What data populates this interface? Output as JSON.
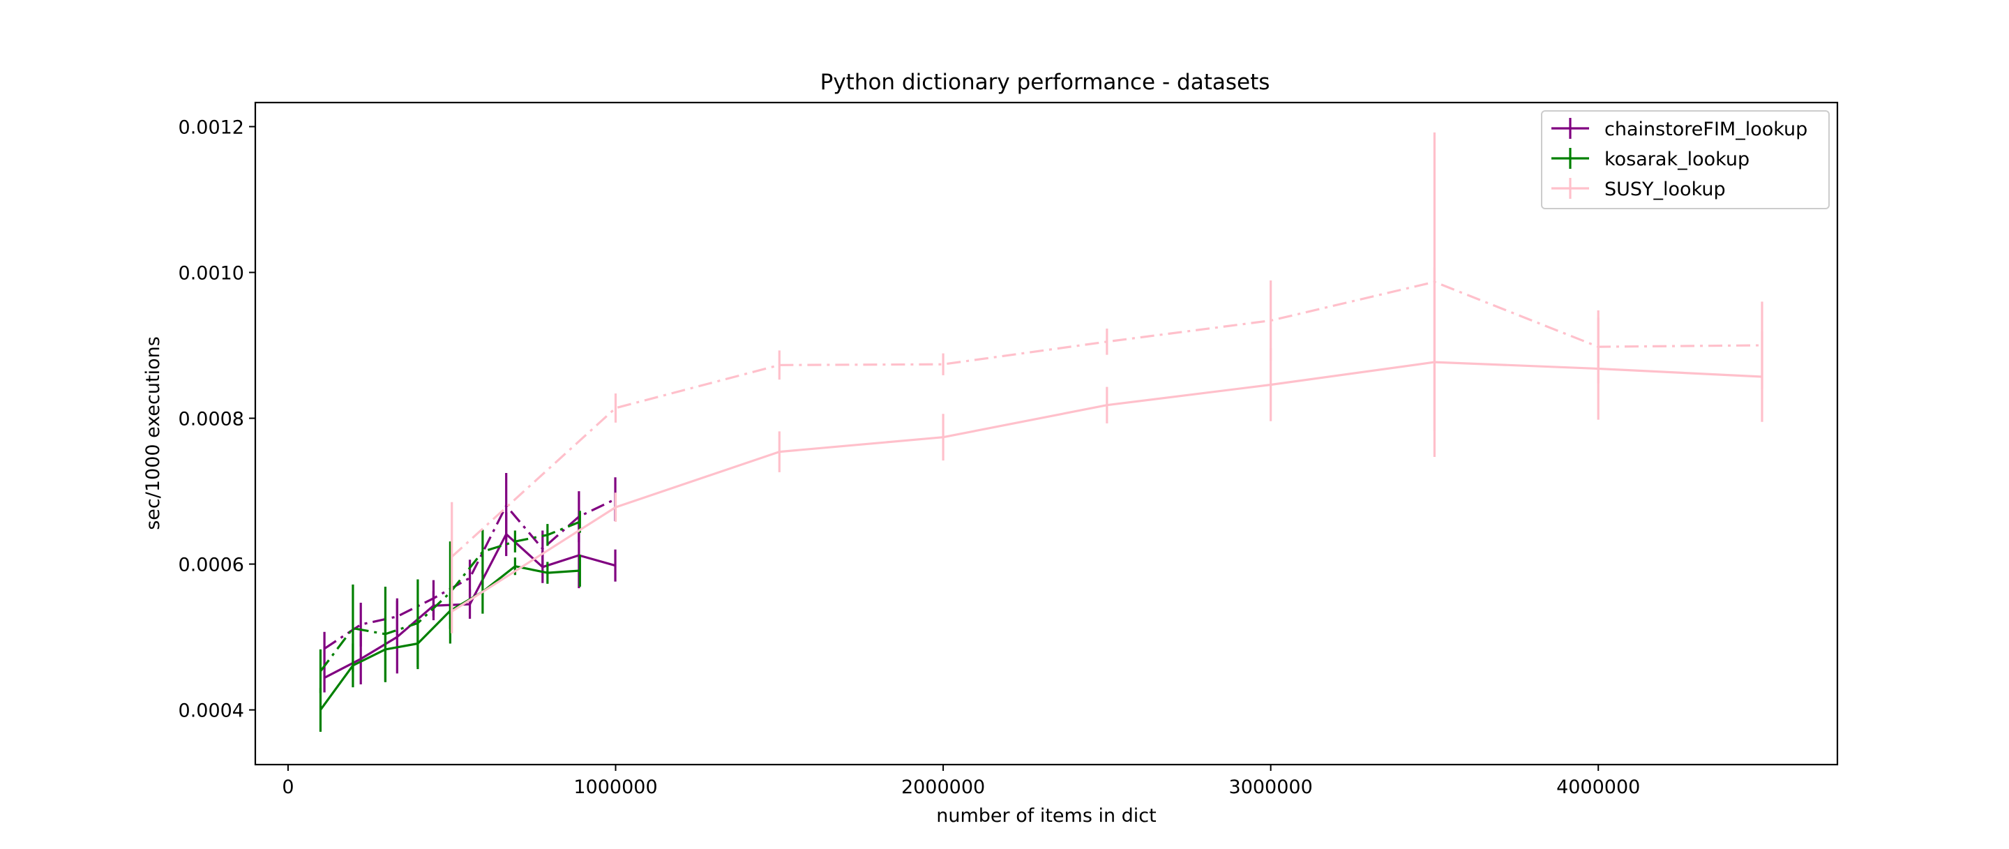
{
  "chart_data": {
    "type": "line",
    "title": "Python dictionary performance - datasets",
    "xlabel": "number of items in dict",
    "ylabel": "sec/1000 executions",
    "xlim": [
      -100000,
      4730000
    ],
    "ylim": [
      0.000325,
      0.001233
    ],
    "x_ticks": [
      0,
      1000000,
      2000000,
      3000000,
      4000000
    ],
    "x_tick_labels": [
      "0",
      "1000000",
      "2000000",
      "3000000",
      "4000000"
    ],
    "y_ticks": [
      0.0004,
      0.0006,
      0.0008,
      0.001,
      0.0012
    ],
    "y_tick_labels": [
      "0.0004",
      "0.0006",
      "0.0008",
      "0.0010",
      "0.0012"
    ],
    "grid": false,
    "legend": {
      "position": "top-right",
      "entries": [
        "chainstoreFIM_lookup",
        "kosarak_lookup",
        "SUSY_lookup"
      ]
    },
    "series": [
      {
        "name": "chainstoreFIM_lookup",
        "line_style": "solid",
        "color": "#800080",
        "in_legend": true,
        "points": [
          {
            "x": 111000,
            "y": 0.000444,
            "err": 2e-05
          },
          {
            "x": 222000,
            "y": 0.00047,
            "err": 3.5e-05
          },
          {
            "x": 333000,
            "y": 0.0005,
            "err": 5e-05
          },
          {
            "x": 444000,
            "y": 0.000543,
            "err": 2e-05
          },
          {
            "x": 555000,
            "y": 0.000545,
            "err": 2e-05
          },
          {
            "x": 666000,
            "y": 0.000641,
            "err": 3e-05
          },
          {
            "x": 777000,
            "y": 0.000596,
            "err": 2.2e-05
          },
          {
            "x": 888000,
            "y": 0.000612,
            "err": 4.5e-05
          },
          {
            "x": 999000,
            "y": 0.000598,
            "err": 2.2e-05
          }
        ]
      },
      {
        "name": "chainstoreFIM_lookup",
        "line_style": "dashdot",
        "color": "#800080",
        "in_legend": false,
        "points": [
          {
            "x": 111000,
            "y": 0.000484,
            "err": 2.3e-05
          },
          {
            "x": 222000,
            "y": 0.000517,
            "err": 3e-05
          },
          {
            "x": 333000,
            "y": 0.000528,
            "err": 2.5e-05
          },
          {
            "x": 444000,
            "y": 0.000553,
            "err": 2.5e-05
          },
          {
            "x": 555000,
            "y": 0.000581,
            "err": 2.5e-05
          },
          {
            "x": 666000,
            "y": 0.00068,
            "err": 4.5e-05
          },
          {
            "x": 777000,
            "y": 0.000621,
            "err": 2.5e-05
          },
          {
            "x": 888000,
            "y": 0.000665,
            "err": 3.5e-05
          },
          {
            "x": 999000,
            "y": 0.000689,
            "err": 3e-05
          }
        ]
      },
      {
        "name": "kosarak_lookup",
        "line_style": "solid",
        "color": "#008000",
        "in_legend": true,
        "points": [
          {
            "x": 99000,
            "y": 0.0004,
            "err": 3e-05
          },
          {
            "x": 198000,
            "y": 0.000461,
            "err": 3e-05
          },
          {
            "x": 297000,
            "y": 0.000483,
            "err": 4.5e-05
          },
          {
            "x": 396000,
            "y": 0.000491,
            "err": 3.5e-05
          },
          {
            "x": 495000,
            "y": 0.000536,
            "err": 2.5e-05
          },
          {
            "x": 594000,
            "y": 0.000562,
            "err": 3e-05
          },
          {
            "x": 693000,
            "y": 0.000597,
            "err": 1.2e-05
          },
          {
            "x": 792000,
            "y": 0.000588,
            "err": 1.5e-05
          },
          {
            "x": 891000,
            "y": 0.000591,
            "err": 2.2e-05
          }
        ]
      },
      {
        "name": "kosarak_lookup",
        "line_style": "dashdot",
        "color": "#008000",
        "in_legend": false,
        "points": [
          {
            "x": 99000,
            "y": 0.000453,
            "err": 3e-05
          },
          {
            "x": 198000,
            "y": 0.000512,
            "err": 6e-05
          },
          {
            "x": 297000,
            "y": 0.000504,
            "err": 6.5e-05
          },
          {
            "x": 396000,
            "y": 0.000519,
            "err": 6e-05
          },
          {
            "x": 495000,
            "y": 0.000561,
            "err": 7e-05
          },
          {
            "x": 594000,
            "y": 0.000617,
            "err": 3e-05
          },
          {
            "x": 693000,
            "y": 0.000631,
            "err": 1.5e-05
          },
          {
            "x": 792000,
            "y": 0.00064,
            "err": 1.5e-05
          },
          {
            "x": 891000,
            "y": 0.000658,
            "err": 1.5e-05
          }
        ]
      },
      {
        "name": "SUSY_lookup",
        "line_style": "solid",
        "color": "#ffc0cb",
        "in_legend": true,
        "points": [
          {
            "x": 500000,
            "y": 0.000535,
            "err": 3e-05
          },
          {
            "x": 1000000,
            "y": 0.000678,
            "err": 2e-05
          },
          {
            "x": 1500000,
            "y": 0.000754,
            "err": 2.8e-05
          },
          {
            "x": 2000000,
            "y": 0.000774,
            "err": 3.2e-05
          },
          {
            "x": 2500000,
            "y": 0.000818,
            "err": 2.5e-05
          },
          {
            "x": 3000000,
            "y": 0.000846,
            "err": 5e-05
          },
          {
            "x": 3500000,
            "y": 0.000877,
            "err": 0.00013
          },
          {
            "x": 4000000,
            "y": 0.000868,
            "err": 7e-05
          },
          {
            "x": 4500000,
            "y": 0.000857,
            "err": 6.2e-05
          }
        ]
      },
      {
        "name": "SUSY_lookup",
        "line_style": "dashdot",
        "color": "#ffc0cb",
        "in_legend": false,
        "points": [
          {
            "x": 500000,
            "y": 0.00061,
            "err": 7.5e-05
          },
          {
            "x": 1000000,
            "y": 0.000814,
            "err": 2e-05
          },
          {
            "x": 1500000,
            "y": 0.000873,
            "err": 2e-05
          },
          {
            "x": 2000000,
            "y": 0.000874,
            "err": 1.5e-05
          },
          {
            "x": 2500000,
            "y": 0.000905,
            "err": 1.8e-05
          },
          {
            "x": 3000000,
            "y": 0.000934,
            "err": 5.5e-05
          },
          {
            "x": 3500000,
            "y": 0.000987,
            "err": 0.000205
          },
          {
            "x": 4000000,
            "y": 0.000898,
            "err": 5e-05
          },
          {
            "x": 4500000,
            "y": 0.0009,
            "err": 6e-05
          }
        ]
      }
    ]
  }
}
